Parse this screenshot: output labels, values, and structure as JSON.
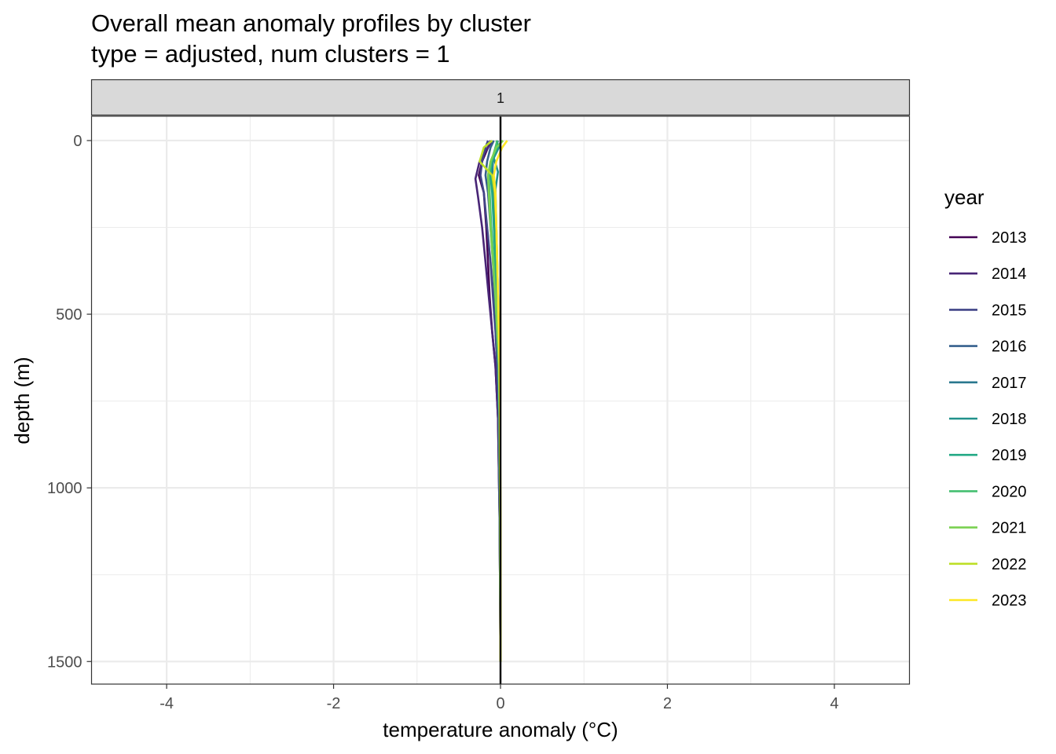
{
  "chart_data": {
    "type": "line",
    "title": "Overall mean anomaly profiles by cluster",
    "subtitle": "type = adjusted, num clusters = 1",
    "facet_label": "1",
    "xlabel": "temperature anomaly (°C)",
    "ylabel": "depth (m)",
    "xlim": [
      -4.9,
      4.9
    ],
    "ylim": [
      -70,
      1565
    ],
    "y_reversed": true,
    "x_ticks": [
      -4,
      -2,
      0,
      2,
      4
    ],
    "x_tick_labels": [
      "-4",
      "-2",
      "0",
      "2",
      "4"
    ],
    "y_ticks": [
      0,
      500,
      1000,
      1500
    ],
    "y_tick_labels": [
      "0",
      "500",
      "1000",
      "1500"
    ],
    "reference_line_x": 0,
    "grid": true,
    "legend_title": "year",
    "legend_position": "right",
    "series": [
      {
        "name": "2013",
        "color": "#440154",
        "x": [
          -0.12,
          -0.15,
          -0.22,
          -0.26,
          -0.2,
          -0.17,
          -0.15,
          -0.13,
          -0.1,
          -0.06,
          -0.03,
          -0.01,
          0
        ],
        "depth": [
          0,
          20,
          60,
          100,
          150,
          250,
          350,
          450,
          550,
          650,
          800,
          1100,
          1500
        ]
      },
      {
        "name": "2014",
        "color": "#482576",
        "x": [
          -0.1,
          -0.15,
          -0.25,
          -0.3,
          -0.27,
          -0.22,
          -0.18,
          -0.14,
          -0.1,
          -0.06,
          -0.03,
          -0.01,
          0
        ],
        "depth": [
          0,
          20,
          60,
          110,
          160,
          250,
          350,
          450,
          550,
          650,
          800,
          1100,
          1500
        ]
      },
      {
        "name": "2015",
        "color": "#414487",
        "x": [
          -0.15,
          -0.18,
          -0.22,
          -0.24,
          -0.2,
          -0.16,
          -0.12,
          -0.09,
          -0.06,
          -0.04,
          -0.02,
          -0.01,
          0
        ],
        "depth": [
          0,
          20,
          60,
          100,
          150,
          250,
          350,
          450,
          550,
          650,
          800,
          1100,
          1500
        ]
      },
      {
        "name": "2016",
        "color": "#35608d",
        "x": [
          -0.08,
          -0.12,
          -0.16,
          -0.18,
          -0.15,
          -0.12,
          -0.09,
          -0.07,
          -0.05,
          -0.03,
          -0.02,
          -0.01,
          0
        ],
        "depth": [
          0,
          20,
          60,
          100,
          150,
          250,
          350,
          450,
          550,
          650,
          800,
          1100,
          1500
        ]
      },
      {
        "name": "2017",
        "color": "#2a788e",
        "x": [
          -0.03,
          -0.06,
          -0.09,
          -0.1,
          -0.08,
          -0.06,
          -0.05,
          -0.04,
          -0.03,
          -0.02,
          -0.01,
          -0.005,
          0
        ],
        "depth": [
          0,
          20,
          60,
          100,
          150,
          250,
          350,
          450,
          550,
          650,
          800,
          1100,
          1500
        ]
      },
      {
        "name": "2018",
        "color": "#21918c",
        "x": [
          -0.05,
          -0.02,
          -0.08,
          -0.03,
          -0.06,
          -0.05,
          -0.04,
          -0.03,
          -0.02,
          -0.015,
          -0.01,
          -0.005,
          0
        ],
        "depth": [
          0,
          20,
          50,
          90,
          140,
          250,
          350,
          450,
          550,
          650,
          800,
          1100,
          1500
        ]
      },
      {
        "name": "2019",
        "color": "#22a884",
        "x": [
          0.02,
          -0.04,
          -0.1,
          -0.12,
          -0.1,
          -0.08,
          -0.06,
          -0.045,
          -0.03,
          -0.02,
          -0.01,
          -0.005,
          0
        ],
        "depth": [
          0,
          20,
          60,
          100,
          150,
          250,
          350,
          450,
          550,
          650,
          800,
          1100,
          1500
        ]
      },
      {
        "name": "2020",
        "color": "#44bf70",
        "x": [
          -0.04,
          -0.06,
          -0.11,
          -0.14,
          -0.13,
          -0.11,
          -0.08,
          -0.06,
          -0.04,
          -0.02,
          -0.01,
          -0.005,
          0
        ],
        "depth": [
          0,
          20,
          60,
          100,
          150,
          250,
          350,
          450,
          550,
          650,
          800,
          1100,
          1500
        ]
      },
      {
        "name": "2021",
        "color": "#7ad151",
        "x": [
          0.03,
          -0.05,
          -0.12,
          -0.15,
          -0.14,
          -0.12,
          -0.09,
          -0.06,
          -0.04,
          -0.02,
          -0.01,
          -0.005,
          0
        ],
        "depth": [
          0,
          20,
          60,
          100,
          150,
          250,
          350,
          450,
          550,
          650,
          800,
          1100,
          1500
        ]
      },
      {
        "name": "2022",
        "color": "#bddf26",
        "x": [
          -0.1,
          -0.2,
          -0.25,
          -0.1,
          -0.07,
          -0.05,
          -0.04,
          -0.03,
          -0.02,
          -0.01,
          -0.005,
          0,
          0
        ],
        "depth": [
          0,
          20,
          60,
          100,
          150,
          250,
          350,
          450,
          550,
          650,
          800,
          1100,
          1500
        ]
      },
      {
        "name": "2023",
        "color": "#fde725",
        "x": [
          0.08,
          0.02,
          -0.05,
          -0.08,
          -0.06,
          -0.05,
          -0.04,
          -0.03,
          -0.02,
          -0.01,
          -0.005,
          0,
          0
        ],
        "depth": [
          0,
          20,
          60,
          100,
          150,
          250,
          350,
          450,
          550,
          650,
          800,
          1100,
          1500
        ]
      }
    ]
  }
}
